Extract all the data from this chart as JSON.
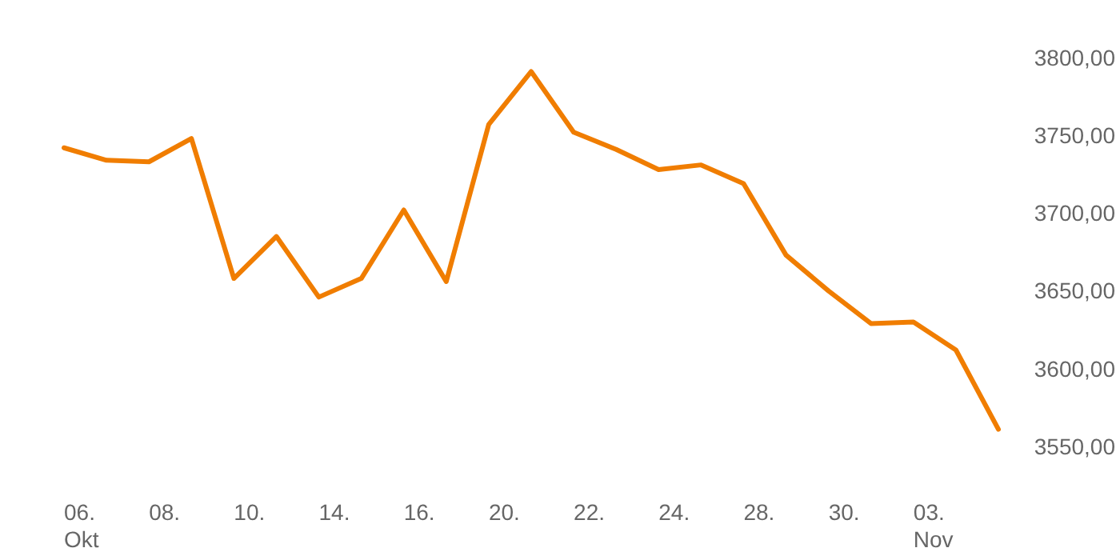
{
  "chart_data": {
    "type": "line",
    "categories": [
      "06. Okt",
      null,
      "08.",
      null,
      "10.",
      null,
      "14.",
      null,
      "16.",
      null,
      "20.",
      null,
      "22.",
      null,
      "24.",
      null,
      "28.",
      null,
      "30.",
      null,
      "03. Nov",
      null,
      null
    ],
    "series": [
      {
        "color": "#f07d00",
        "values": [
          3742,
          3734,
          3733,
          3748,
          3658,
          3685,
          3646,
          3658,
          3702,
          3656,
          3757,
          3791,
          3752,
          3741,
          3728,
          3731,
          3719,
          3673,
          3650,
          3629,
          3630,
          3612,
          3561
        ]
      }
    ],
    "yticks": [
      {
        "value": 3550,
        "label": "3550,00"
      },
      {
        "value": 3600,
        "label": "3600,00"
      },
      {
        "value": 3650,
        "label": "3650,00"
      },
      {
        "value": 3700,
        "label": "3700,00"
      },
      {
        "value": 3750,
        "label": "3750,00"
      },
      {
        "value": 3800,
        "label": "3800,00"
      }
    ],
    "ylim": [
      3550,
      3800
    ],
    "grid": false,
    "marker": "none",
    "line_style": "solid"
  }
}
